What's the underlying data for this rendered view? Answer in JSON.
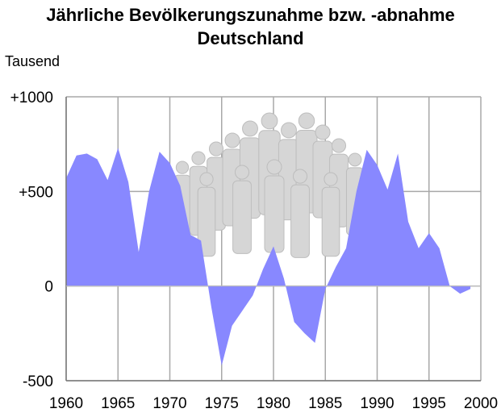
{
  "chart_data": {
    "type": "area",
    "title_lines": [
      "Jährliche Bevölkerungszunahme bzw. -abnahme",
      "Deutschland"
    ],
    "ylabel": "Tausend",
    "xlim": [
      1960,
      2000
    ],
    "ylim": [
      -500,
      1000
    ],
    "x_ticks": [
      "1960",
      "1965",
      "1970",
      "1975",
      "1980",
      "1985",
      "1990",
      "1995",
      "2000"
    ],
    "y_ticks": [
      {
        "value": 1000,
        "label": "+1000"
      },
      {
        "value": 500,
        "label": "+500"
      },
      {
        "value": 0,
        "label": "0"
      },
      {
        "value": -500,
        "label": "-500"
      }
    ],
    "grid": true,
    "fill_color": "#8888ff",
    "series": [
      {
        "x": [
          1960,
          1961,
          1962,
          1963,
          1964,
          1965,
          1966,
          1967,
          1968,
          1969,
          1970,
          1971,
          1972,
          1973,
          1974,
          1975,
          1976,
          1977,
          1978,
          1979,
          1980,
          1981,
          1982,
          1983,
          1984,
          1985,
          1986,
          1987,
          1988,
          1989,
          1990,
          1991,
          1992,
          1993,
          1994,
          1995,
          1996,
          1997,
          1998,
          1999
        ],
        "values": [
          570,
          690,
          700,
          670,
          560,
          730,
          550,
          180,
          500,
          710,
          650,
          530,
          270,
          240,
          -110,
          -420,
          -210,
          -130,
          -50,
          90,
          210,
          40,
          -190,
          -250,
          -300,
          -15,
          100,
          200,
          500,
          720,
          640,
          510,
          700,
          340,
          200,
          280,
          200,
          0,
          -40,
          -15
        ]
      }
    ],
    "background_figure": "people-crowd-icon"
  }
}
